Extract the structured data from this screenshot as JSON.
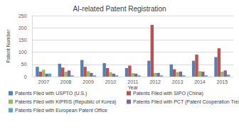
{
  "chart_data": {
    "type": "bar",
    "title": "AI-related Patent Registration",
    "x_label": "Year",
    "y_label": "Patent Number",
    "categories": [
      "2007",
      "2008",
      "2009",
      "2010",
      "2011",
      "2012",
      "2013",
      "2014",
      "2015"
    ],
    "series": [
      {
        "name": "Patents Filed with USPTO (U.S.)",
        "color": "#4f81bd",
        "values": [
          40,
          52,
          68,
          55,
          35,
          65,
          50,
          65,
          80
        ]
      },
      {
        "name": "Patents Filed with SIPO (China)",
        "color": "#c0504d",
        "values": [
          20,
          37,
          40,
          35,
          45,
          212,
          30,
          90,
          116
        ]
      },
      {
        "name": "Patents Filed with KIPRIS (Republic of Korea)",
        "color": "#9bbb59",
        "values": [
          28,
          20,
          22,
          18,
          14,
          15,
          18,
          22,
          20
        ]
      },
      {
        "name": "Patents Filed with PCT (Patent Cooperation Treaty)",
        "color": "#8064a2",
        "values": [
          12,
          25,
          15,
          12,
          12,
          15,
          20,
          20,
          25
        ]
      },
      {
        "name": "Patents Filed with European Patent Office",
        "color": "#4bacc6",
        "values": [
          12,
          5,
          5,
          5,
          5,
          5,
          5,
          5,
          8
        ]
      }
    ],
    "ylim": [
      0,
      250
    ],
    "yticks": [
      0,
      50,
      100,
      150,
      200,
      250
    ],
    "grid": true,
    "legend": "bottom"
  }
}
